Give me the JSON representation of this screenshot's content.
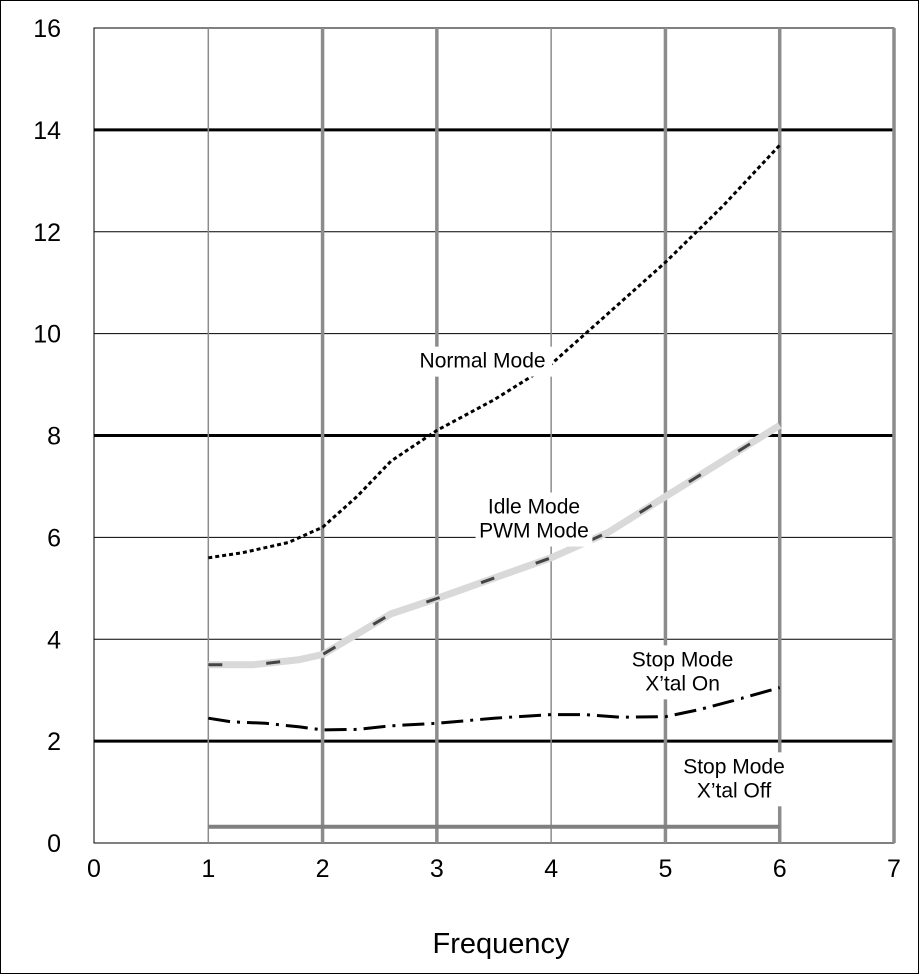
{
  "chart_data": {
    "type": "line",
    "title": "",
    "xlabel": "Frequency",
    "ylabel": "",
    "xlim": [
      0,
      7
    ],
    "ylim": [
      0,
      16
    ],
    "x_ticks": [
      "0",
      "1",
      "2",
      "3",
      "4",
      "5",
      "6",
      "7"
    ],
    "y_ticks": [
      "0",
      "2",
      "4",
      "6",
      "8",
      "10",
      "12",
      "14",
      "16"
    ],
    "grid": true,
    "series": [
      {
        "style": "dotted",
        "color": "#000000",
        "points": [
          [
            1.0,
            5.6
          ],
          [
            1.3,
            5.7
          ],
          [
            1.7,
            5.9
          ],
          [
            2.0,
            6.2
          ],
          [
            2.3,
            6.8
          ],
          [
            2.6,
            7.5
          ],
          [
            3.0,
            8.1
          ],
          [
            3.5,
            8.7
          ],
          [
            4.0,
            9.4
          ],
          [
            4.5,
            10.4
          ],
          [
            5.0,
            11.4
          ],
          [
            5.5,
            12.5
          ],
          [
            6.0,
            13.7
          ]
        ]
      },
      {
        "style": "light-dashed",
        "color": "#d9d9d9",
        "points": [
          [
            1.0,
            3.5
          ],
          [
            1.4,
            3.5
          ],
          [
            1.8,
            3.6
          ],
          [
            2.0,
            3.7
          ],
          [
            2.3,
            4.1
          ],
          [
            2.6,
            4.5
          ],
          [
            3.0,
            4.8
          ],
          [
            3.5,
            5.2
          ],
          [
            4.0,
            5.6
          ],
          [
            4.5,
            6.1
          ],
          [
            5.0,
            6.8
          ],
          [
            5.5,
            7.5
          ],
          [
            6.0,
            8.2
          ]
        ]
      },
      {
        "style": "dash-dot",
        "color": "#000000",
        "points": [
          [
            1.0,
            2.45
          ],
          [
            1.2,
            2.38
          ],
          [
            1.5,
            2.35
          ],
          [
            1.8,
            2.28
          ],
          [
            2.0,
            2.22
          ],
          [
            2.3,
            2.23
          ],
          [
            2.6,
            2.3
          ],
          [
            3.0,
            2.35
          ],
          [
            3.5,
            2.45
          ],
          [
            4.0,
            2.52
          ],
          [
            4.3,
            2.52
          ],
          [
            4.6,
            2.47
          ],
          [
            5.0,
            2.48
          ],
          [
            5.3,
            2.62
          ],
          [
            5.6,
            2.8
          ],
          [
            6.0,
            3.05
          ]
        ]
      },
      {
        "style": "solid-gray",
        "color": "#808080",
        "points": [
          [
            1.0,
            0.32
          ],
          [
            6.0,
            0.32
          ]
        ]
      }
    ],
    "annotations": [
      {
        "lines": [
          "Normal Mode"
        ],
        "x": 3.4,
        "y": 9.45
      },
      {
        "lines": [
          "Idle Mode",
          "PWM Mode"
        ],
        "x": 3.85,
        "y": 6.35
      },
      {
        "lines": [
          "Stop Mode",
          "X’tal On"
        ],
        "x": 5.15,
        "y": 3.35
      },
      {
        "lines": [
          "Stop Mode",
          "X’tal Off"
        ],
        "x": 5.6,
        "y": 1.25
      }
    ]
  }
}
